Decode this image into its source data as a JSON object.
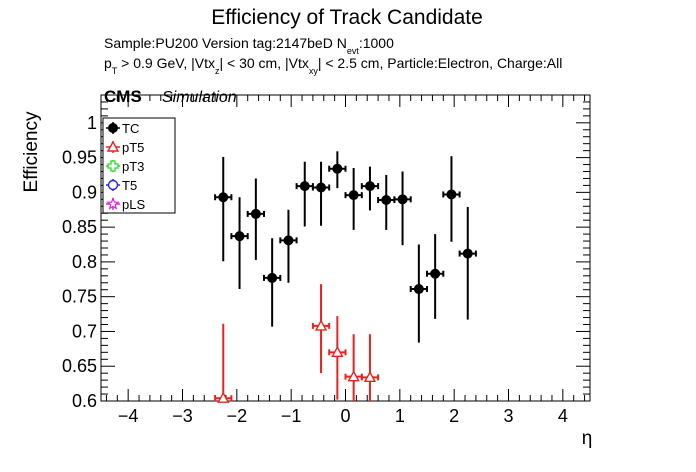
{
  "title": "Efficiency of Track Candidate",
  "info_line1": {
    "prefix": "Sample:PU200   Version tag:2147beD  N",
    "sub": "evt",
    "suffix": ":1000"
  },
  "info_line2": {
    "p": "p",
    "p_sub": "T",
    "part1": " > 0.9 GeV, |Vtx",
    "z_sub": "z",
    "part2": "| < 30 cm, |Vtx",
    "xy_sub": "xy",
    "part3": "| < 2.5 cm, Particle:Electron, Charge:All"
  },
  "cms_label": "CMS",
  "simulation_label": "Simulation",
  "colors": {
    "TC": "#000000",
    "pT5": "#e8231d",
    "pT3": "#22dd22",
    "T5": "#2222ee",
    "pLS": "#e020e0"
  },
  "chart_data": {
    "type": "scatter",
    "xlabel": "η",
    "ylabel": "Efficiency",
    "xlim": [
      -4.5,
      4.5
    ],
    "ylim": [
      0.6,
      1.04
    ],
    "x_ticks": [
      -4,
      -3,
      -2,
      -1,
      0,
      1,
      2,
      3,
      4
    ],
    "y_ticks": [
      0.6,
      0.65,
      0.7,
      0.75,
      0.8,
      0.85,
      0.9,
      0.95,
      1
    ],
    "x_tick_labels": [
      "−4",
      "−3",
      "−2",
      "−1",
      "0",
      "1",
      "2",
      "3",
      "4"
    ],
    "y_tick_labels": [
      "0.6",
      "0.65",
      "0.7",
      "0.75",
      "0.8",
      "0.85",
      "0.9",
      "0.95",
      "1"
    ],
    "grid": false,
    "legend_position": "top-left",
    "series": [
      {
        "name": "TC",
        "marker": "filled-circle",
        "x": [
          -2.25,
          -1.95,
          -1.65,
          -1.35,
          -1.05,
          -0.75,
          -0.45,
          -0.15,
          0.15,
          0.45,
          0.75,
          1.05,
          1.35,
          1.65,
          1.95,
          2.25
        ],
        "y": [
          0.893,
          0.837,
          0.869,
          0.777,
          0.831,
          0.909,
          0.907,
          0.934,
          0.896,
          0.909,
          0.889,
          0.89,
          0.761,
          0.783,
          0.897,
          0.812
        ],
        "yerr_low": [
          0.092,
          0.076,
          0.066,
          0.07,
          0.061,
          0.058,
          0.055,
          0.028,
          0.05,
          0.035,
          0.043,
          0.066,
          0.077,
          0.065,
          0.068,
          0.095
        ],
        "yerr_high": [
          0.058,
          0.056,
          0.051,
          0.057,
          0.044,
          0.035,
          0.037,
          0.025,
          0.039,
          0.028,
          0.036,
          0.04,
          0.064,
          0.057,
          0.055,
          0.067
        ],
        "xerr": 0.15
      },
      {
        "name": "pT5",
        "marker": "open-triangle",
        "x": [
          -2.25,
          -0.45,
          -0.15,
          0.15,
          0.45
        ],
        "y": [
          0.604,
          0.708,
          0.67,
          0.635,
          0.634
        ],
        "yerr_low": [
          0.004,
          0.068,
          0.068,
          0.035,
          0.034
        ],
        "yerr_high": [
          0.107,
          0.06,
          0.052,
          0.061,
          0.062
        ],
        "xerr": 0.15
      },
      {
        "name": "pT3",
        "marker": "open-cross",
        "x": [],
        "y": []
      },
      {
        "name": "T5",
        "marker": "open-circle",
        "x": [],
        "y": []
      },
      {
        "name": "pLS",
        "marker": "open-star",
        "x": [],
        "y": []
      }
    ]
  }
}
